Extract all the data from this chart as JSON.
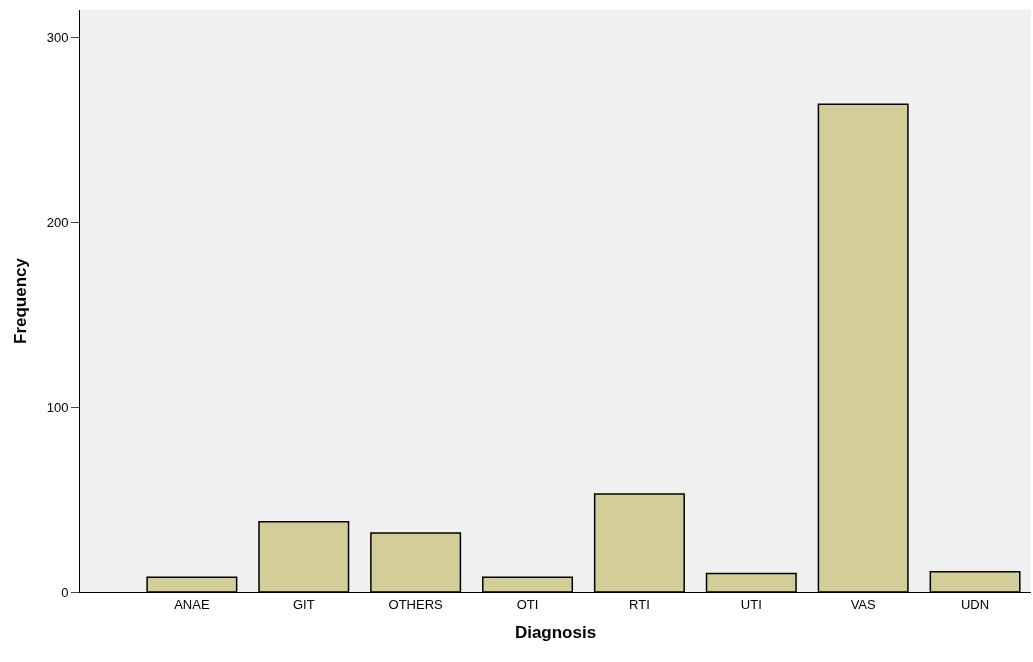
{
  "chart_data": {
    "type": "bar",
    "xlabel": "Diagnosis",
    "ylabel": "Frequency",
    "categories": [
      "ANAE",
      "GIT",
      "OTHERS",
      "OTI",
      "RTI",
      "UTI",
      "VAS",
      "UDN"
    ],
    "values": [
      8,
      38,
      32,
      8,
      53,
      10,
      264,
      11
    ],
    "color": "#d3ce97",
    "ylim": [
      0,
      315
    ],
    "yticks": [
      0,
      100,
      200,
      300
    ],
    "grid": false
  }
}
